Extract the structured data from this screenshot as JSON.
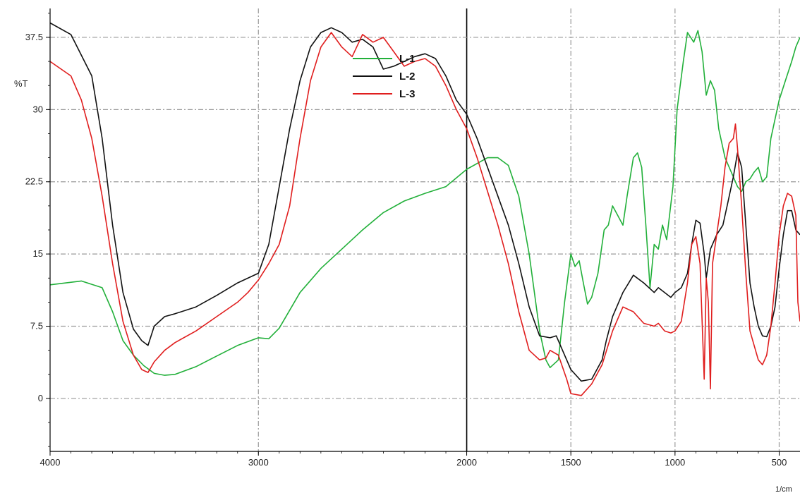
{
  "chart_data": {
    "type": "line",
    "title": "",
    "xlabel": "",
    "ylabel": "%T",
    "x_unit": "1/cm",
    "xlim": [
      4000,
      400
    ],
    "ylim": [
      -5.5,
      40.5
    ],
    "x_ticks": [
      {
        "value": 4000,
        "label": "4000"
      },
      {
        "value": 3000,
        "label": "3000"
      },
      {
        "value": 2000,
        "label": "2000"
      },
      {
        "value": 1500,
        "label": "1500"
      },
      {
        "value": 1000,
        "label": "1000"
      },
      {
        "value": 500,
        "label": "500"
      }
    ],
    "y_ticks": [
      {
        "value": 37.5,
        "label": "37.5"
      },
      {
        "value": 30,
        "label": "30"
      },
      {
        "value": 22.5,
        "label": "22.5"
      },
      {
        "value": 15,
        "label": "15"
      },
      {
        "value": 7.5,
        "label": "7.5"
      },
      {
        "value": 0,
        "label": "0"
      }
    ],
    "grid": true,
    "legend_position": "top-center",
    "series": [
      {
        "name": "L-1",
        "color": "#22b03a",
        "points": [
          [
            4000,
            11.8
          ],
          [
            3850,
            12.2
          ],
          [
            3750,
            11.5
          ],
          [
            3700,
            9.0
          ],
          [
            3650,
            6.0
          ],
          [
            3600,
            4.5
          ],
          [
            3550,
            3.4
          ],
          [
            3500,
            2.6
          ],
          [
            3450,
            2.4
          ],
          [
            3400,
            2.5
          ],
          [
            3300,
            3.3
          ],
          [
            3200,
            4.4
          ],
          [
            3100,
            5.5
          ],
          [
            3000,
            6.3
          ],
          [
            2950,
            6.2
          ],
          [
            2900,
            7.3
          ],
          [
            2800,
            11.0
          ],
          [
            2700,
            13.5
          ],
          [
            2600,
            15.5
          ],
          [
            2500,
            17.5
          ],
          [
            2400,
            19.3
          ],
          [
            2300,
            20.5
          ],
          [
            2200,
            21.3
          ],
          [
            2100,
            22.0
          ],
          [
            2000,
            23.8
          ],
          [
            1900,
            25.0
          ],
          [
            1850,
            25.0
          ],
          [
            1800,
            24.2
          ],
          [
            1750,
            21.0
          ],
          [
            1700,
            15.0
          ],
          [
            1650,
            7.0
          ],
          [
            1620,
            4.0
          ],
          [
            1600,
            3.2
          ],
          [
            1560,
            4.0
          ],
          [
            1530,
            10.0
          ],
          [
            1500,
            15.0
          ],
          [
            1480,
            13.7
          ],
          [
            1460,
            14.3
          ],
          [
            1440,
            12.0
          ],
          [
            1420,
            9.8
          ],
          [
            1400,
            10.5
          ],
          [
            1370,
            13.0
          ],
          [
            1340,
            17.5
          ],
          [
            1320,
            18.0
          ],
          [
            1300,
            20.0
          ],
          [
            1280,
            19.2
          ],
          [
            1250,
            18.0
          ],
          [
            1230,
            21.0
          ],
          [
            1200,
            25.0
          ],
          [
            1180,
            25.5
          ],
          [
            1160,
            24.0
          ],
          [
            1140,
            18.0
          ],
          [
            1120,
            11.5
          ],
          [
            1100,
            16.0
          ],
          [
            1080,
            15.5
          ],
          [
            1060,
            18.0
          ],
          [
            1040,
            16.5
          ],
          [
            1010,
            22.0
          ],
          [
            990,
            30.0
          ],
          [
            960,
            35.0
          ],
          [
            940,
            38.0
          ],
          [
            910,
            37.0
          ],
          [
            890,
            38.2
          ],
          [
            870,
            36.0
          ],
          [
            850,
            31.5
          ],
          [
            830,
            33.0
          ],
          [
            810,
            32.0
          ],
          [
            790,
            28.0
          ],
          [
            760,
            25.0
          ],
          [
            730,
            23.5
          ],
          [
            700,
            22.0
          ],
          [
            680,
            21.5
          ],
          [
            660,
            22.5
          ],
          [
            640,
            22.8
          ],
          [
            620,
            23.5
          ],
          [
            600,
            24.0
          ],
          [
            580,
            22.5
          ],
          [
            560,
            23.0
          ],
          [
            540,
            27.0
          ],
          [
            500,
            31.0
          ],
          [
            470,
            33.0
          ],
          [
            440,
            35.0
          ],
          [
            420,
            36.5
          ],
          [
            400,
            37.5
          ]
        ]
      },
      {
        "name": "L-2",
        "color": "#111111",
        "points": [
          [
            4000,
            39.0
          ],
          [
            3900,
            37.8
          ],
          [
            3800,
            33.5
          ],
          [
            3750,
            27.0
          ],
          [
            3700,
            18.0
          ],
          [
            3650,
            11.0
          ],
          [
            3600,
            7.2
          ],
          [
            3560,
            6.0
          ],
          [
            3530,
            5.5
          ],
          [
            3500,
            7.5
          ],
          [
            3450,
            8.5
          ],
          [
            3400,
            8.8
          ],
          [
            3300,
            9.5
          ],
          [
            3200,
            10.7
          ],
          [
            3100,
            12.0
          ],
          [
            3000,
            13.0
          ],
          [
            2950,
            16.0
          ],
          [
            2900,
            22.0
          ],
          [
            2850,
            28.0
          ],
          [
            2800,
            33.0
          ],
          [
            2750,
            36.5
          ],
          [
            2700,
            38.0
          ],
          [
            2650,
            38.5
          ],
          [
            2600,
            38.0
          ],
          [
            2550,
            37.0
          ],
          [
            2500,
            37.3
          ],
          [
            2450,
            36.5
          ],
          [
            2400,
            34.2
          ],
          [
            2350,
            34.5
          ],
          [
            2300,
            35.0
          ],
          [
            2250,
            35.5
          ],
          [
            2200,
            35.8
          ],
          [
            2150,
            35.3
          ],
          [
            2100,
            33.5
          ],
          [
            2050,
            31.0
          ],
          [
            2000,
            29.5
          ],
          [
            1950,
            27.0
          ],
          [
            1900,
            24.0
          ],
          [
            1850,
            21.0
          ],
          [
            1800,
            18.0
          ],
          [
            1750,
            14.0
          ],
          [
            1700,
            9.5
          ],
          [
            1650,
            6.5
          ],
          [
            1600,
            6.3
          ],
          [
            1570,
            6.5
          ],
          [
            1550,
            5.5
          ],
          [
            1500,
            3.0
          ],
          [
            1450,
            1.8
          ],
          [
            1400,
            2.0
          ],
          [
            1350,
            4.0
          ],
          [
            1330,
            6.0
          ],
          [
            1300,
            8.5
          ],
          [
            1250,
            11.0
          ],
          [
            1200,
            12.8
          ],
          [
            1150,
            12.0
          ],
          [
            1100,
            11.0
          ],
          [
            1080,
            11.5
          ],
          [
            1050,
            11.0
          ],
          [
            1020,
            10.5
          ],
          [
            1000,
            11.0
          ],
          [
            970,
            11.5
          ],
          [
            940,
            13.0
          ],
          [
            920,
            16.0
          ],
          [
            900,
            18.5
          ],
          [
            880,
            18.2
          ],
          [
            860,
            15.0
          ],
          [
            850,
            12.5
          ],
          [
            830,
            15.5
          ],
          [
            800,
            17.0
          ],
          [
            770,
            18.0
          ],
          [
            750,
            20.0
          ],
          [
            720,
            23.0
          ],
          [
            700,
            25.5
          ],
          [
            680,
            24.0
          ],
          [
            660,
            18.0
          ],
          [
            640,
            12.0
          ],
          [
            620,
            9.5
          ],
          [
            600,
            7.5
          ],
          [
            580,
            6.5
          ],
          [
            560,
            6.4
          ],
          [
            540,
            7.5
          ],
          [
            520,
            9.5
          ],
          [
            500,
            13.5
          ],
          [
            480,
            17.0
          ],
          [
            460,
            19.5
          ],
          [
            440,
            19.5
          ],
          [
            420,
            17.5
          ],
          [
            400,
            17.0
          ]
        ]
      },
      {
        "name": "L-3",
        "color": "#e01e1e",
        "points": [
          [
            4000,
            35.0
          ],
          [
            3900,
            33.5
          ],
          [
            3850,
            31.0
          ],
          [
            3800,
            27.0
          ],
          [
            3750,
            21.0
          ],
          [
            3700,
            14.0
          ],
          [
            3650,
            8.0
          ],
          [
            3600,
            4.5
          ],
          [
            3560,
            3.0
          ],
          [
            3530,
            2.7
          ],
          [
            3500,
            3.8
          ],
          [
            3450,
            5.0
          ],
          [
            3400,
            5.8
          ],
          [
            3300,
            7.0
          ],
          [
            3200,
            8.5
          ],
          [
            3100,
            10.0
          ],
          [
            3050,
            11.0
          ],
          [
            3000,
            12.3
          ],
          [
            2950,
            14.0
          ],
          [
            2900,
            16.0
          ],
          [
            2850,
            20.0
          ],
          [
            2800,
            27.0
          ],
          [
            2750,
            33.0
          ],
          [
            2700,
            36.5
          ],
          [
            2650,
            38.0
          ],
          [
            2600,
            36.5
          ],
          [
            2550,
            35.5
          ],
          [
            2500,
            37.8
          ],
          [
            2450,
            37.0
          ],
          [
            2400,
            37.5
          ],
          [
            2350,
            36.0
          ],
          [
            2300,
            34.5
          ],
          [
            2250,
            35.0
          ],
          [
            2200,
            35.3
          ],
          [
            2150,
            34.5
          ],
          [
            2100,
            32.5
          ],
          [
            2050,
            30.0
          ],
          [
            2000,
            28.0
          ],
          [
            1950,
            25.0
          ],
          [
            1900,
            21.5
          ],
          [
            1850,
            18.0
          ],
          [
            1800,
            14.0
          ],
          [
            1750,
            9.0
          ],
          [
            1700,
            5.0
          ],
          [
            1650,
            4.0
          ],
          [
            1620,
            4.2
          ],
          [
            1600,
            5.0
          ],
          [
            1560,
            4.5
          ],
          [
            1520,
            2.0
          ],
          [
            1500,
            0.5
          ],
          [
            1450,
            0.3
          ],
          [
            1400,
            1.5
          ],
          [
            1350,
            3.5
          ],
          [
            1300,
            7.0
          ],
          [
            1250,
            9.5
          ],
          [
            1200,
            9.0
          ],
          [
            1150,
            7.8
          ],
          [
            1100,
            7.5
          ],
          [
            1080,
            7.8
          ],
          [
            1050,
            7.0
          ],
          [
            1020,
            6.8
          ],
          [
            1000,
            7.0
          ],
          [
            970,
            8.0
          ],
          [
            940,
            12.0
          ],
          [
            920,
            16.0
          ],
          [
            900,
            16.8
          ],
          [
            880,
            14.0
          ],
          [
            860,
            2.0
          ],
          [
            850,
            12.5
          ],
          [
            840,
            10.0
          ],
          [
            830,
            1.0
          ],
          [
            820,
            14.0
          ],
          [
            800,
            17.0
          ],
          [
            780,
            20.0
          ],
          [
            760,
            24.0
          ],
          [
            740,
            26.5
          ],
          [
            720,
            27.0
          ],
          [
            710,
            28.5
          ],
          [
            700,
            26.0
          ],
          [
            680,
            20.0
          ],
          [
            660,
            13.0
          ],
          [
            640,
            7.0
          ],
          [
            620,
            5.5
          ],
          [
            600,
            4.0
          ],
          [
            580,
            3.5
          ],
          [
            560,
            4.5
          ],
          [
            540,
            7.5
          ],
          [
            520,
            12.0
          ],
          [
            500,
            17.0
          ],
          [
            480,
            20.0
          ],
          [
            460,
            21.3
          ],
          [
            440,
            21.0
          ],
          [
            420,
            19.0
          ],
          [
            410,
            10.0
          ],
          [
            400,
            8.0
          ]
        ]
      }
    ]
  }
}
